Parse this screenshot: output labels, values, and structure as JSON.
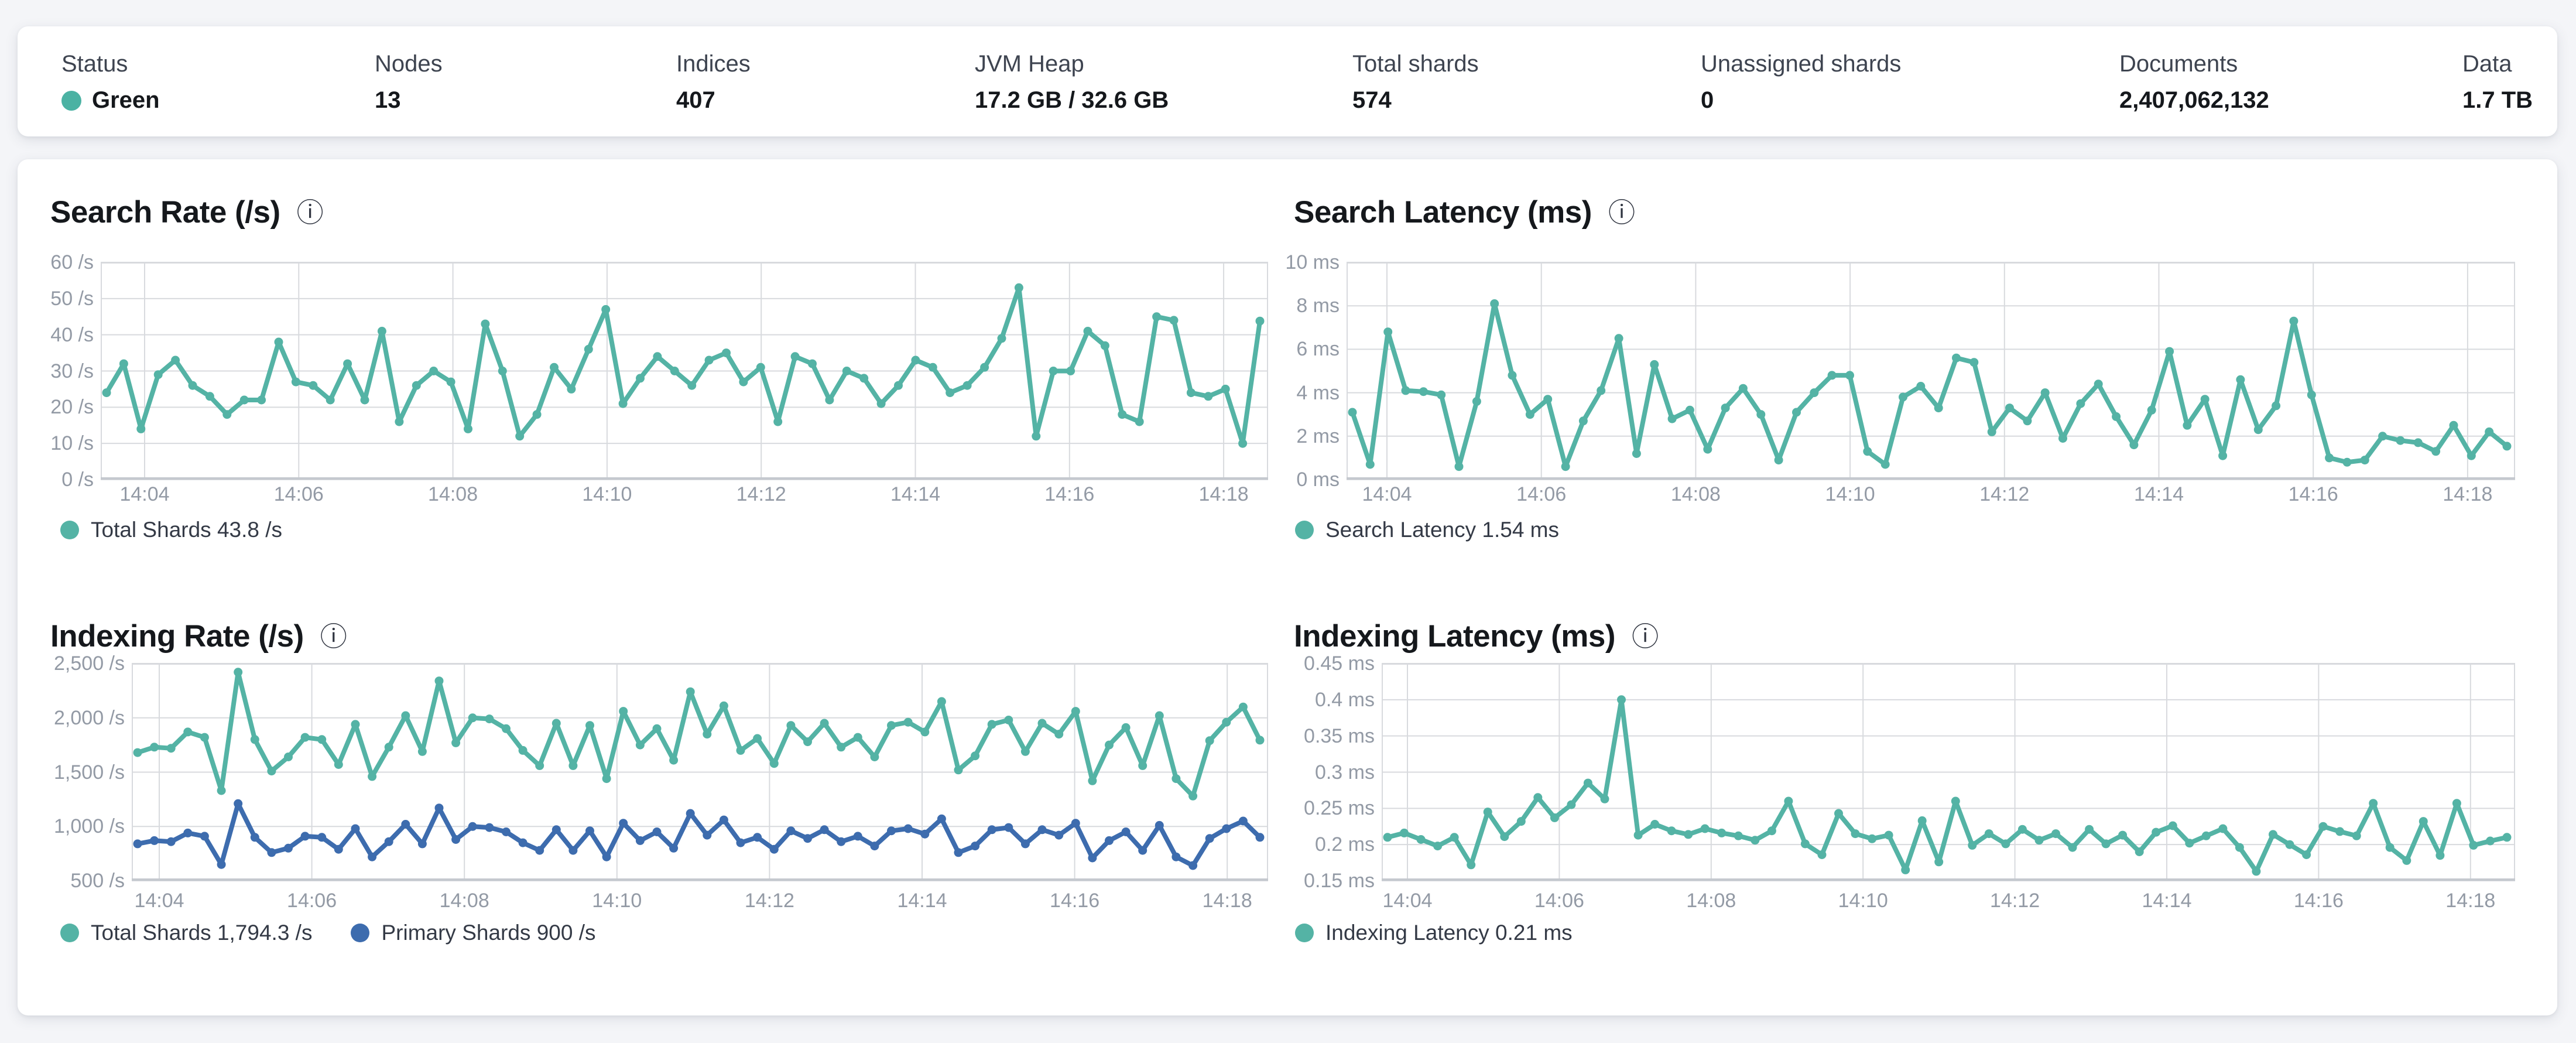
{
  "status_bar": {
    "stats": [
      {
        "label": "Status",
        "value": "Green",
        "dot_color": "#4bb2a3"
      },
      {
        "label": "Nodes",
        "value": "13"
      },
      {
        "label": "Indices",
        "value": "407"
      },
      {
        "label": "JVM Heap",
        "value": "17.2 GB / 32.6 GB"
      },
      {
        "label": "Total shards",
        "value": "574"
      },
      {
        "label": "Unassigned shards",
        "value": "0"
      },
      {
        "label": "Documents",
        "value": "2,407,062,132"
      },
      {
        "label": "Data",
        "value": "1.7 TB"
      }
    ]
  },
  "colors": {
    "teal": "#54b3a5",
    "blue": "#3d6cae",
    "grid": "#d8dade",
    "axis_line": "#c5c9cf",
    "axis_text": "#939aa5",
    "title_text": "#15181c"
  },
  "info_icon_glyph": "ⓘ",
  "chart_data": [
    {
      "type": "line",
      "title": "Search Rate (/s)",
      "ylabel": "/s",
      "ylim": [
        0,
        60
      ],
      "y_tick_labels": [
        "60 /s",
        "50 /s",
        "40 /s",
        "30 /s",
        "20 /s",
        "10 /s",
        "0 /s"
      ],
      "x_tick_labels": [
        "14:04",
        "14:06",
        "14:08",
        "14:10",
        "14:12",
        "14:14",
        "14:16",
        "14:18"
      ],
      "grid": true,
      "legend_position": "bottom",
      "legend": [
        {
          "label": "Total Shards 43.8 /s",
          "color": "#54b3a5"
        }
      ],
      "series": [
        {
          "name": "Total Shards",
          "color": "#54b3a5",
          "values": [
            24,
            32,
            14,
            29,
            33,
            26,
            23,
            18,
            22,
            22,
            38,
            27,
            26,
            22,
            32,
            22,
            41,
            16,
            26,
            30,
            27,
            14,
            43,
            30,
            12,
            18,
            31,
            25,
            36,
            47,
            21,
            28,
            34,
            30,
            26,
            33,
            35,
            27,
            31,
            16,
            34,
            32,
            22,
            30,
            28,
            21,
            26,
            33,
            31,
            24,
            26,
            31,
            39,
            53,
            12,
            30,
            30,
            41,
            37,
            18,
            16,
            45,
            44,
            24,
            23,
            25,
            10,
            43.8
          ]
        }
      ]
    },
    {
      "type": "line",
      "title": "Search Latency (ms)",
      "ylabel": "ms",
      "ylim": [
        0,
        10
      ],
      "y_tick_labels": [
        "10 ms",
        "8 ms",
        "6 ms",
        "4 ms",
        "2 ms",
        "0 ms"
      ],
      "x_tick_labels": [
        "14:04",
        "14:06",
        "14:08",
        "14:10",
        "14:12",
        "14:14",
        "14:16",
        "14:18"
      ],
      "grid": true,
      "legend_position": "bottom",
      "legend": [
        {
          "label": "Search Latency 1.54 ms",
          "color": "#54b3a5"
        }
      ],
      "series": [
        {
          "name": "Search Latency",
          "color": "#54b3a5",
          "values": [
            3.1,
            0.7,
            6.8,
            4.1,
            4.05,
            3.9,
            0.6,
            3.6,
            8.1,
            4.8,
            3.0,
            3.7,
            0.6,
            2.7,
            4.1,
            6.5,
            1.2,
            5.3,
            2.8,
            3.2,
            1.4,
            3.3,
            4.2,
            3.0,
            0.9,
            3.1,
            4.0,
            4.8,
            4.8,
            1.3,
            0.7,
            3.8,
            4.3,
            3.3,
            5.6,
            5.4,
            2.2,
            3.3,
            2.7,
            4.0,
            1.9,
            3.5,
            4.4,
            2.9,
            1.6,
            3.2,
            5.9,
            2.5,
            3.7,
            1.1,
            4.6,
            2.3,
            3.4,
            7.3,
            3.9,
            1.0,
            0.8,
            0.9,
            2.0,
            1.8,
            1.7,
            1.3,
            2.5,
            1.1,
            2.2,
            1.54
          ]
        }
      ]
    },
    {
      "type": "line",
      "title": "Indexing Rate (/s)",
      "ylabel": "/s",
      "ylim": [
        500,
        2500
      ],
      "y_tick_labels": [
        "2,500 /s",
        "2,000 /s",
        "1,500 /s",
        "1,000 /s",
        "500 /s"
      ],
      "x_tick_labels": [
        "14:04",
        "14:06",
        "14:08",
        "14:10",
        "14:12",
        "14:14",
        "14:16",
        "14:18"
      ],
      "grid": true,
      "legend_position": "bottom",
      "legend": [
        {
          "label": "Total Shards 1,794.3 /s",
          "color": "#54b3a5"
        },
        {
          "label": "Primary Shards 900 /s",
          "color": "#3d6cae"
        }
      ],
      "series": [
        {
          "name": "Total Shards",
          "color": "#54b3a5",
          "values": [
            1680,
            1730,
            1720,
            1870,
            1820,
            1330,
            2420,
            1800,
            1510,
            1640,
            1820,
            1800,
            1570,
            1940,
            1460,
            1730,
            2020,
            1690,
            2340,
            1770,
            2000,
            1990,
            1900,
            1700,
            1560,
            1950,
            1560,
            1930,
            1440,
            2060,
            1750,
            1900,
            1610,
            2240,
            1850,
            2110,
            1700,
            1810,
            1580,
            1930,
            1780,
            1950,
            1730,
            1820,
            1640,
            1930,
            1960,
            1870,
            2150,
            1520,
            1650,
            1940,
            1980,
            1690,
            1950,
            1850,
            2060,
            1420,
            1750,
            1910,
            1560,
            2020,
            1440,
            1280,
            1790,
            1960,
            2100,
            1794.3
          ]
        },
        {
          "name": "Primary Shards",
          "color": "#3d6cae",
          "values": [
            840,
            870,
            860,
            940,
            910,
            650,
            1210,
            900,
            760,
            800,
            910,
            900,
            790,
            980,
            720,
            860,
            1020,
            840,
            1170,
            880,
            1000,
            990,
            950,
            850,
            780,
            970,
            780,
            960,
            720,
            1030,
            870,
            950,
            800,
            1120,
            920,
            1060,
            850,
            900,
            790,
            960,
            890,
            970,
            860,
            910,
            820,
            960,
            980,
            930,
            1070,
            760,
            820,
            970,
            990,
            840,
            970,
            920,
            1030,
            710,
            870,
            950,
            780,
            1010,
            720,
            640,
            890,
            980,
            1050,
            900
          ]
        }
      ]
    },
    {
      "type": "line",
      "title": "Indexing Latency (ms)",
      "ylabel": "ms",
      "ylim": [
        0.15,
        0.45
      ],
      "y_tick_labels": [
        "0.45 ms",
        "0.4 ms",
        "0.35 ms",
        "0.3 ms",
        "0.25 ms",
        "0.2 ms",
        "0.15 ms"
      ],
      "x_tick_labels": [
        "14:04",
        "14:06",
        "14:08",
        "14:10",
        "14:12",
        "14:14",
        "14:16",
        "14:18"
      ],
      "grid": true,
      "legend_position": "bottom",
      "legend": [
        {
          "label": "Indexing Latency 0.21 ms",
          "color": "#54b3a5"
        }
      ],
      "series": [
        {
          "name": "Indexing Latency",
          "color": "#54b3a5",
          "values": [
            0.21,
            0.216,
            0.207,
            0.198,
            0.21,
            0.172,
            0.245,
            0.211,
            0.232,
            0.265,
            0.237,
            0.255,
            0.285,
            0.263,
            0.4,
            0.213,
            0.228,
            0.219,
            0.214,
            0.222,
            0.216,
            0.212,
            0.206,
            0.219,
            0.26,
            0.201,
            0.186,
            0.243,
            0.215,
            0.208,
            0.213,
            0.165,
            0.233,
            0.176,
            0.26,
            0.199,
            0.215,
            0.201,
            0.221,
            0.206,
            0.215,
            0.196,
            0.221,
            0.201,
            0.213,
            0.19,
            0.217,
            0.226,
            0.202,
            0.212,
            0.222,
            0.196,
            0.163,
            0.214,
            0.2,
            0.186,
            0.225,
            0.218,
            0.212,
            0.257,
            0.196,
            0.178,
            0.232,
            0.185,
            0.257,
            0.199,
            0.205,
            0.21
          ]
        }
      ]
    }
  ]
}
